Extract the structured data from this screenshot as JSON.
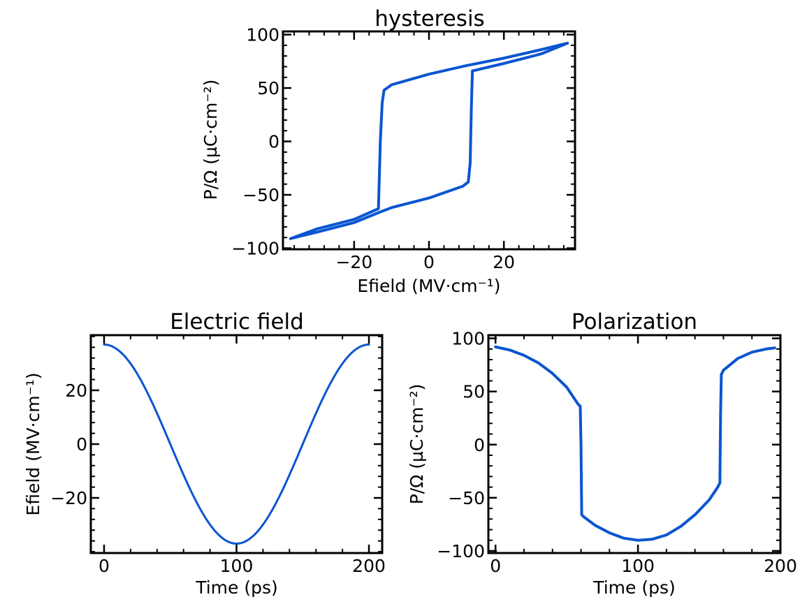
{
  "chart_data": [
    {
      "type": "line",
      "title": "hysteresis",
      "xlabel": "Efield (MV·cm⁻¹)",
      "ylabel": "P/Ω (µC·cm⁻²)",
      "xlim": [
        -39,
        39
      ],
      "ylim": [
        -101,
        103
      ],
      "xticks": [
        -20,
        0,
        20
      ],
      "yticks": [
        -100,
        -50,
        0,
        50,
        100
      ],
      "xtick_labels": [
        "−20",
        "0",
        "20"
      ],
      "ytick_labels": [
        "−100",
        "−50",
        "0",
        "50",
        "100"
      ],
      "grid": false,
      "color": "#0a55d0",
      "series": [
        {
          "x": [
            37,
            30,
            20,
            10,
            0,
            -10,
            -12,
            -12.5,
            -13,
            -13.5,
            -20,
            -30,
            -37,
            -30,
            -20,
            -13,
            -10,
            0,
            9,
            10.5,
            11,
            11.3,
            11.6,
            20,
            30,
            37
          ],
          "y": [
            92,
            86,
            78,
            71,
            63,
            53,
            48,
            36,
            0,
            -63,
            -73,
            -82,
            -91,
            -85,
            -76,
            -66,
            -62,
            -53,
            -42,
            -38,
            -20,
            30,
            66,
            73,
            82,
            92
          ]
        }
      ]
    },
    {
      "type": "line",
      "title": "Electric field",
      "xlabel": "Time (ps)",
      "ylabel": "Efield (MV·cm⁻¹)",
      "xlim": [
        -10,
        210
      ],
      "ylim": [
        -40.5,
        40.5
      ],
      "xticks": [
        0,
        100,
        200
      ],
      "yticks": [
        -20,
        0,
        20
      ],
      "xtick_labels": [
        "0",
        "100",
        "200"
      ],
      "ytick_labels": [
        "−20",
        "0",
        "20"
      ],
      "grid": false,
      "color": "#0a55d0",
      "series": [
        {
          "x": [
            0,
            20,
            40,
            60,
            80,
            100,
            120,
            140,
            160,
            180,
            200
          ],
          "y": [
            37,
            29.9,
            11.4,
            -11.4,
            -29.9,
            -37,
            -29.9,
            -11.4,
            11.4,
            29.9,
            37
          ]
        }
      ]
    },
    {
      "type": "line",
      "title": "Polarization",
      "xlabel": "Time (ps)",
      "ylabel": "P/Ω (µC·cm⁻²)",
      "xlim": [
        -5,
        200
      ],
      "ylim": [
        -102,
        103
      ],
      "xticks": [
        0,
        100,
        200
      ],
      "yticks": [
        -100,
        -50,
        0,
        50,
        100
      ],
      "xtick_labels": [
        "0",
        "100",
        "200"
      ],
      "ytick_labels": [
        "−100",
        "−50",
        "0",
        "50",
        "100"
      ],
      "grid": false,
      "color": "#0a55d0",
      "series": [
        {
          "x": [
            0,
            10,
            20,
            30,
            40,
            50,
            58,
            59.5,
            60,
            60.5,
            62,
            70,
            80,
            90,
            100,
            110,
            120,
            130,
            140,
            150,
            156,
            157.5,
            158,
            158.5,
            160,
            170,
            180,
            190,
            196
          ],
          "y": [
            92,
            89,
            84,
            77,
            67,
            54,
            38,
            36,
            0,
            -66,
            -68,
            -76,
            -83,
            -88,
            -90,
            -89,
            -85,
            -77,
            -66,
            -52,
            -40,
            -36,
            30,
            66,
            70,
            81,
            87,
            90,
            91
          ]
        }
      ]
    }
  ]
}
